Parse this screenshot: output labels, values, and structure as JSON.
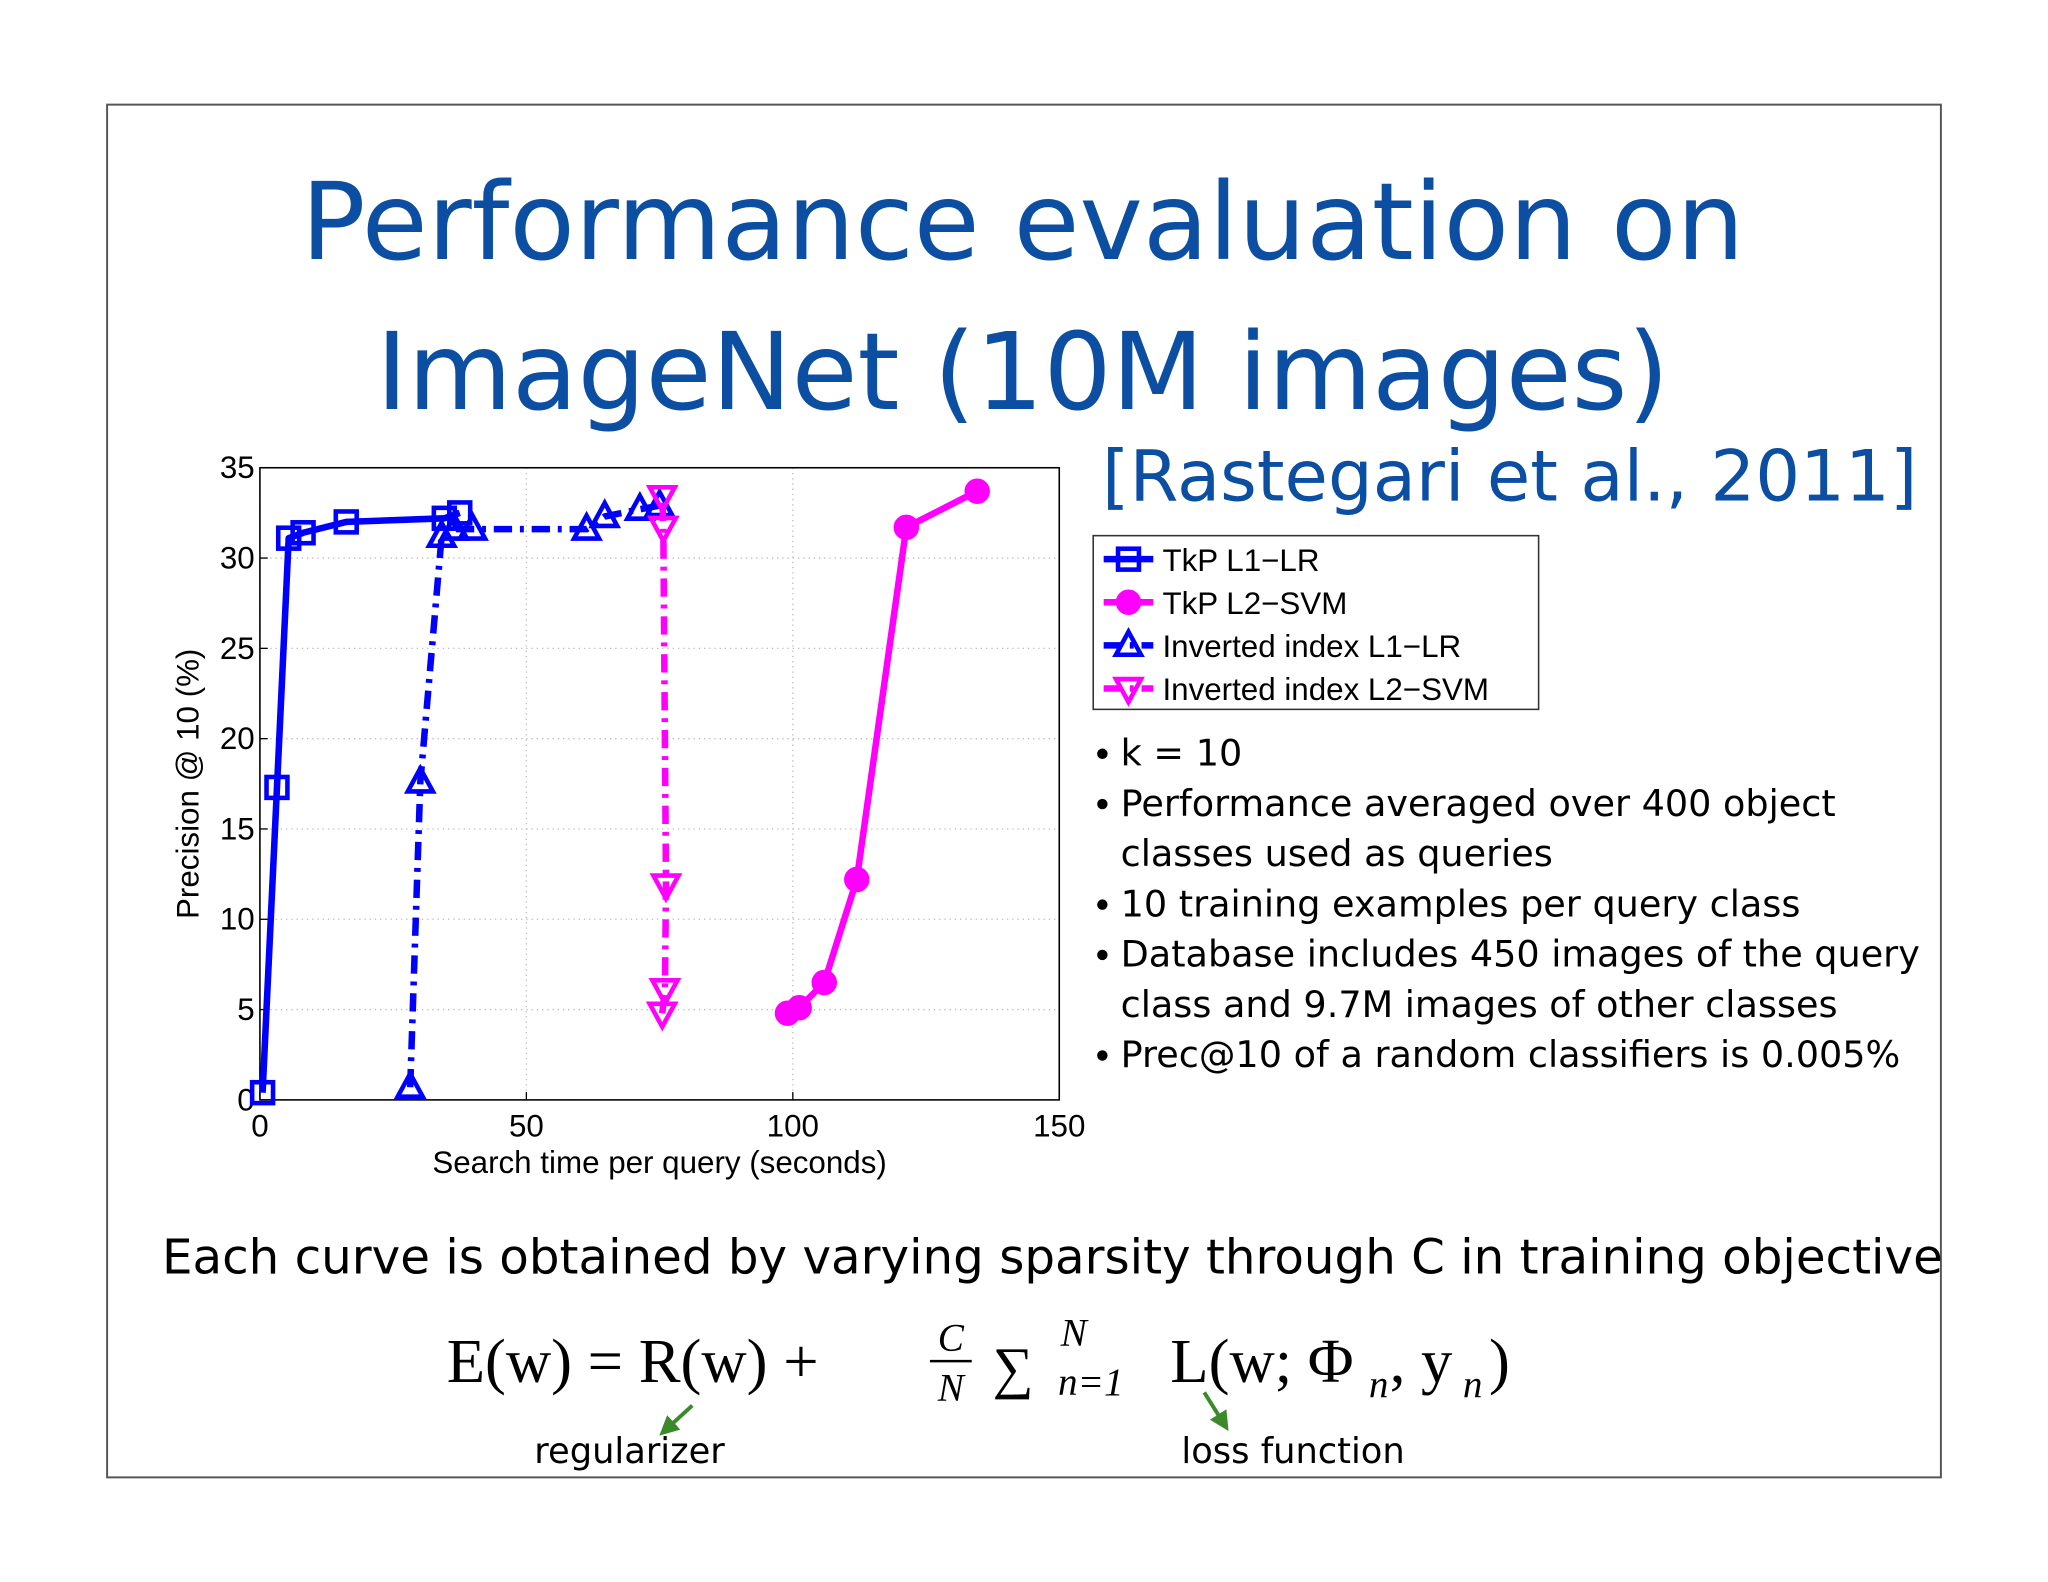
{
  "slide": {
    "title_lines": [
      "Performance evaluation on",
      "ImageNet (10M images)"
    ],
    "citation": "[Rastegari et al., 2011]",
    "bullets": [
      [
        "k = 10"
      ],
      [
        "Performance averaged over 400 object",
        "classes used as queries"
      ],
      [
        "10 training examples per query class"
      ],
      [
        "Database includes 450 images of the query",
        "class and 9.7M images of other classes"
      ],
      [
        "Prec@10 of a random classifiers is 0.005%"
      ]
    ],
    "caption": "Each curve is obtained by varying sparsity through C in training objective",
    "formula": {
      "lhs": "E(w) = R(w) +",
      "frac_num": "C",
      "frac_den": "N",
      "sum": "∑",
      "sum_upper": "N",
      "sum_lower": "n=1",
      "rhs": "L(w; Φ",
      "sub1": "n",
      "mid": ", y",
      "sub2": "n",
      "close": ")"
    },
    "annotations": [
      "regularizer",
      "loss function"
    ]
  },
  "chart_data": {
    "type": "line",
    "x_label": "Search time per query (seconds)",
    "y_label": "Precision @ 10 (%)",
    "xlim": [
      0,
      150
    ],
    "ylim": [
      0,
      35
    ],
    "xticks": [
      0,
      50,
      100,
      150
    ],
    "yticks": [
      0,
      5,
      10,
      15,
      20,
      25,
      30,
      35
    ],
    "grid": true,
    "legend": "right",
    "series": [
      {
        "name": "TkP L1−LR",
        "color": "#0000ff",
        "marker": "square",
        "dash": "solid",
        "x": [
          0.5,
          3.2,
          5.4,
          8.1,
          16.2,
          34.6,
          37.5
        ],
        "values": [
          0.4,
          17.3,
          31.1,
          31.4,
          32.0,
          32.2,
          32.5
        ]
      },
      {
        "name": "TkP L2−SVM",
        "color": "#ff00ff",
        "marker": "circle",
        "dash": "solid",
        "x": [
          99,
          101.2,
          105.9,
          112,
          121.3,
          134.6
        ],
        "values": [
          4.8,
          5.1,
          6.5,
          12.2,
          31.7,
          33.7
        ]
      },
      {
        "name": "Inverted index L1−LR",
        "color": "#0000ff",
        "marker": "triangle-up",
        "dash": "dashdot",
        "x": [
          28.2,
          30.1,
          34.1,
          36.5,
          39.9,
          61.3,
          64.7,
          71.3,
          75
        ],
        "values": [
          0.7,
          17.6,
          31.2,
          31.6,
          31.6,
          31.6,
          32.3,
          32.7,
          32.9
        ]
      },
      {
        "name": "Inverted index L2−SVM",
        "color": "#ff00ff",
        "marker": "triangle-down",
        "dash": "dashdot",
        "x": [
          75.5,
          76,
          76.2,
          75.7,
          75.5
        ],
        "values": [
          4.8,
          6.1,
          11.9,
          31.7,
          33.4
        ]
      }
    ]
  }
}
